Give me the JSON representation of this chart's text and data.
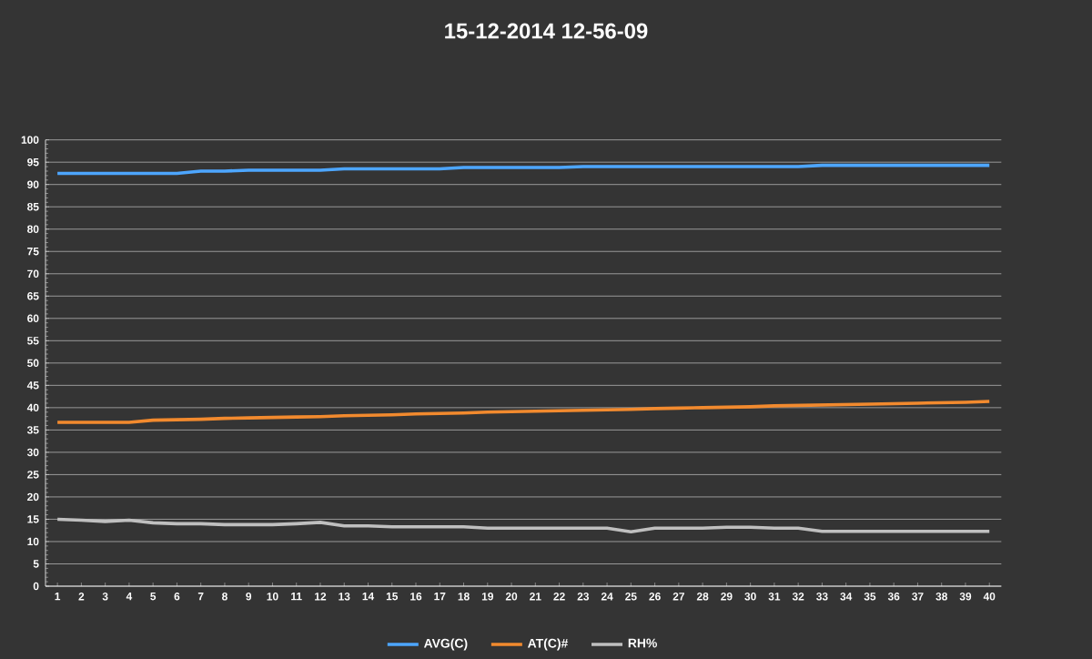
{
  "chart_data": {
    "type": "line",
    "title": "15-12-2014 12-56-09",
    "categories": [
      "1",
      "2",
      "3",
      "4",
      "5",
      "6",
      "7",
      "8",
      "9",
      "10",
      "11",
      "12",
      "13",
      "14",
      "15",
      "16",
      "17",
      "18",
      "19",
      "20",
      "21",
      "22",
      "23",
      "24",
      "25",
      "26",
      "27",
      "28",
      "29",
      "30",
      "31",
      "32",
      "33",
      "34",
      "35",
      "36",
      "37",
      "38",
      "39",
      "40"
    ],
    "series": [
      {
        "name": "AVG(C)",
        "color": "#4da6ff",
        "values": [
          92.5,
          92.5,
          92.5,
          92.5,
          92.5,
          92.5,
          93,
          93,
          93.2,
          93.2,
          93.2,
          93.2,
          93.5,
          93.5,
          93.5,
          93.5,
          93.5,
          93.8,
          93.8,
          93.8,
          93.8,
          93.8,
          94,
          94,
          94,
          94,
          94,
          94,
          94,
          94,
          94,
          94,
          94.3,
          94.3,
          94.3,
          94.3,
          94.3,
          94.3,
          94.3,
          94.3
        ]
      },
      {
        "name": "AT(C)#",
        "color": "#f28a2e",
        "values": [
          36.7,
          36.7,
          36.7,
          36.7,
          37.2,
          37.3,
          37.4,
          37.6,
          37.7,
          37.8,
          37.9,
          38,
          38.2,
          38.3,
          38.4,
          38.6,
          38.7,
          38.8,
          39,
          39.1,
          39.2,
          39.3,
          39.4,
          39.5,
          39.6,
          39.8,
          39.9,
          40,
          40.1,
          40.2,
          40.4,
          40.5,
          40.6,
          40.7,
          40.8,
          40.9,
          41,
          41.1,
          41.2,
          41.4
        ]
      },
      {
        "name": "RH%",
        "color": "#bfbfbf",
        "values": [
          15,
          14.8,
          14.5,
          14.8,
          14.2,
          14,
          14,
          13.8,
          13.8,
          13.8,
          14,
          14.3,
          13.5,
          13.5,
          13.3,
          13.3,
          13.3,
          13.3,
          13,
          13,
          13,
          13,
          13,
          13,
          12.2,
          13,
          13,
          13,
          13.2,
          13.2,
          13,
          13,
          12.3,
          12.3,
          12.3,
          12.3,
          12.3,
          12.3,
          12.3,
          12.3
        ]
      }
    ],
    "ylim": [
      0,
      100
    ],
    "yticks": [
      0,
      5,
      10,
      15,
      20,
      25,
      30,
      35,
      40,
      45,
      50,
      55,
      60,
      65,
      70,
      75,
      80,
      85,
      90,
      95,
      100
    ],
    "grid": "y",
    "legend": "bottom"
  }
}
